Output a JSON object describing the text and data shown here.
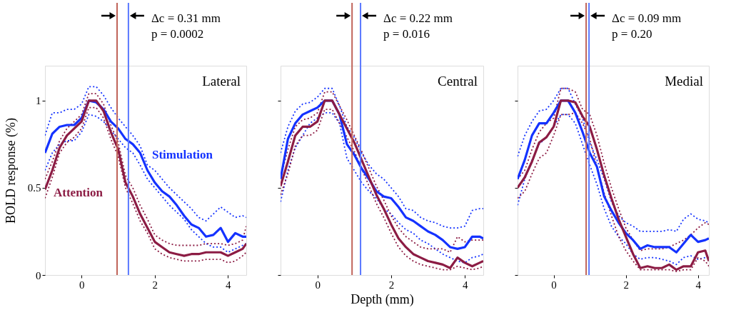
{
  "chart_data": [
    {
      "type": "line",
      "title": "Lateral",
      "ylabel": "BOLD response (%)",
      "xlim": [
        -1,
        4.5
      ],
      "ylim": [
        0,
        1.2
      ],
      "xticks": [
        0,
        2,
        4
      ],
      "yticks": [
        0,
        0.5,
        1
      ],
      "x": [
        -1,
        -0.8,
        -0.6,
        -0.4,
        -0.2,
        0,
        0.2,
        0.4,
        0.6,
        0.8,
        1.0,
        1.2,
        1.4,
        1.6,
        1.8,
        2.0,
        2.2,
        2.4,
        2.6,
        2.8,
        3.0,
        3.2,
        3.4,
        3.6,
        3.8,
        4.0,
        4.2,
        4.4,
        4.5
      ],
      "series": [
        {
          "color": "#1432ff",
          "line_style": "dotted",
          "values": [
            0.8,
            0.93,
            0.93,
            0.95,
            0.95,
            0.98,
            1.08,
            1.08,
            1.03,
            0.96,
            0.9,
            0.85,
            0.8,
            0.74,
            0.63,
            0.6,
            0.55,
            0.5,
            0.46,
            0.42,
            0.38,
            0.33,
            0.31,
            0.35,
            0.39,
            0.36,
            0.33,
            0.34,
            0.33
          ]
        },
        {
          "color": "#1432ff",
          "line_style": "dotted",
          "values": [
            0.6,
            0.7,
            0.75,
            0.77,
            0.77,
            0.82,
            0.92,
            0.91,
            0.88,
            0.83,
            0.78,
            0.73,
            0.7,
            0.63,
            0.55,
            0.5,
            0.45,
            0.4,
            0.36,
            0.32,
            0.26,
            0.22,
            0.18,
            0.16,
            0.16,
            0.13,
            0.15,
            0.17,
            0.18
          ]
        },
        {
          "color": "#8c1c44",
          "line_style": "dotted",
          "values": [
            0.55,
            0.65,
            0.77,
            0.84,
            0.88,
            0.92,
            1.04,
            1.04,
            0.98,
            0.86,
            0.76,
            0.57,
            0.5,
            0.4,
            0.32,
            0.23,
            0.2,
            0.18,
            0.17,
            0.17,
            0.17,
            0.17,
            0.18,
            0.18,
            0.18,
            0.17,
            0.18,
            0.2,
            0.28
          ]
        },
        {
          "color": "#8c1c44",
          "line_style": "dotted",
          "values": [
            0.44,
            0.56,
            0.7,
            0.76,
            0.79,
            0.84,
            0.96,
            0.96,
            0.9,
            0.78,
            0.68,
            0.5,
            0.41,
            0.31,
            0.24,
            0.15,
            0.12,
            0.1,
            0.09,
            0.08,
            0.08,
            0.08,
            0.09,
            0.09,
            0.09,
            0.07,
            0.08,
            0.11,
            0.13
          ]
        },
        {
          "name": "Stimulation",
          "color": "#1432ff",
          "line_style": "solid",
          "values": [
            0.7,
            0.81,
            0.85,
            0.86,
            0.86,
            0.9,
            1.0,
            0.99,
            0.95,
            0.88,
            0.84,
            0.78,
            0.75,
            0.7,
            0.6,
            0.53,
            0.48,
            0.45,
            0.4,
            0.34,
            0.29,
            0.27,
            0.22,
            0.23,
            0.27,
            0.19,
            0.24,
            0.22,
            0.22
          ]
        },
        {
          "name": "Attention",
          "color": "#8c1c44",
          "line_style": "solid",
          "values": [
            0.49,
            0.6,
            0.73,
            0.8,
            0.84,
            0.88,
            1.0,
            1.0,
            0.94,
            0.82,
            0.72,
            0.53,
            0.45,
            0.35,
            0.27,
            0.19,
            0.16,
            0.13,
            0.12,
            0.11,
            0.12,
            0.12,
            0.13,
            0.13,
            0.13,
            0.11,
            0.13,
            0.15,
            0.18
          ]
        }
      ],
      "ref_lines": [
        {
          "axis": "x",
          "value": 0.97,
          "color": "#c0645a"
        },
        {
          "axis": "x",
          "value": 1.28,
          "color": "#5a78ff"
        }
      ],
      "annotations": [
        "Δc = 0.31 mm",
        "p = 0.0002"
      ]
    },
    {
      "type": "line",
      "title": "Central",
      "xlabel": "Depth (mm)",
      "xlim": [
        -1,
        4.5
      ],
      "ylim": [
        0,
        1.2
      ],
      "xticks": [
        0,
        2,
        4
      ],
      "yticks": [
        0,
        0.5,
        1
      ],
      "tick_labels": "x",
      "x": [
        -1,
        -0.8,
        -0.6,
        -0.4,
        -0.2,
        0,
        0.2,
        0.4,
        0.6,
        0.8,
        1.0,
        1.2,
        1.4,
        1.6,
        1.8,
        2.0,
        2.2,
        2.4,
        2.6,
        2.8,
        3.0,
        3.2,
        3.4,
        3.6,
        3.8,
        4.0,
        4.2,
        4.4,
        4.5
      ],
      "series": [
        {
          "color": "#1432ff",
          "line_style": "dotted",
          "values": [
            0.7,
            0.85,
            0.94,
            0.98,
            0.99,
            1.02,
            1.07,
            1.07,
            0.97,
            0.85,
            0.79,
            0.7,
            0.63,
            0.58,
            0.55,
            0.5,
            0.45,
            0.38,
            0.37,
            0.33,
            0.31,
            0.3,
            0.28,
            0.27,
            0.27,
            0.28,
            0.37,
            0.38,
            0.38
          ]
        },
        {
          "color": "#1432ff",
          "line_style": "dotted",
          "values": [
            0.42,
            0.6,
            0.73,
            0.8,
            0.87,
            0.9,
            0.93,
            0.93,
            0.87,
            0.67,
            0.6,
            0.53,
            0.48,
            0.44,
            0.38,
            0.35,
            0.3,
            0.26,
            0.24,
            0.2,
            0.18,
            0.15,
            0.12,
            0.1,
            0.08,
            0.07,
            0.1,
            0.11,
            0.12
          ]
        },
        {
          "color": "#8c1c44",
          "line_style": "dotted",
          "values": [
            0.56,
            0.72,
            0.85,
            0.89,
            0.9,
            0.93,
            1.05,
            1.05,
            0.97,
            0.89,
            0.8,
            0.71,
            0.61,
            0.51,
            0.43,
            0.34,
            0.27,
            0.22,
            0.19,
            0.16,
            0.15,
            0.15,
            0.15,
            0.13,
            0.22,
            0.19,
            0.2,
            0.2,
            0.2
          ]
        },
        {
          "color": "#8c1c44",
          "line_style": "dotted",
          "values": [
            0.46,
            0.58,
            0.74,
            0.8,
            0.8,
            0.83,
            0.95,
            0.95,
            0.87,
            0.79,
            0.71,
            0.61,
            0.51,
            0.41,
            0.33,
            0.24,
            0.16,
            0.11,
            0.08,
            0.06,
            0.05,
            0.04,
            0.03,
            0.03,
            0.05,
            0.04,
            0.03,
            0.04,
            0.05
          ]
        },
        {
          "color": "#1432ff",
          "line_style": "solid",
          "values": [
            0.55,
            0.78,
            0.87,
            0.92,
            0.94,
            0.96,
            1.0,
            1.0,
            0.92,
            0.75,
            0.69,
            0.61,
            0.55,
            0.48,
            0.45,
            0.44,
            0.39,
            0.33,
            0.31,
            0.28,
            0.25,
            0.23,
            0.2,
            0.16,
            0.15,
            0.16,
            0.22,
            0.22,
            0.21
          ]
        },
        {
          "color": "#8c1c44",
          "line_style": "solid",
          "values": [
            0.51,
            0.65,
            0.8,
            0.85,
            0.85,
            0.88,
            1.0,
            1.0,
            0.92,
            0.84,
            0.76,
            0.66,
            0.56,
            0.46,
            0.38,
            0.29,
            0.21,
            0.16,
            0.12,
            0.1,
            0.08,
            0.07,
            0.06,
            0.04,
            0.1,
            0.07,
            0.05,
            0.07,
            0.08
          ]
        }
      ],
      "ref_lines": [
        {
          "axis": "x",
          "value": 0.94,
          "color": "#c0645a"
        },
        {
          "axis": "x",
          "value": 1.17,
          "color": "#5a78ff"
        }
      ],
      "annotations": [
        "Δc = 0.22 mm",
        "p = 0.016"
      ]
    },
    {
      "type": "line",
      "title": "Medial",
      "xlim": [
        -1,
        4.3
      ],
      "ylim": [
        0,
        1.2
      ],
      "xticks": [
        0,
        2,
        4
      ],
      "yticks": [
        0,
        0.5,
        1
      ],
      "tick_labels": "x",
      "x": [
        -1,
        -0.8,
        -0.6,
        -0.4,
        -0.2,
        0,
        0.2,
        0.4,
        0.6,
        0.8,
        1.0,
        1.2,
        1.4,
        1.6,
        1.8,
        2.0,
        2.2,
        2.4,
        2.6,
        2.8,
        3.0,
        3.2,
        3.4,
        3.6,
        3.8,
        4.0,
        4.2,
        4.3
      ],
      "series": [
        {
          "color": "#1432ff",
          "line_style": "dotted",
          "values": [
            0.68,
            0.8,
            0.88,
            0.94,
            0.95,
            1.0,
            1.07,
            1.07,
            0.98,
            0.9,
            0.76,
            0.66,
            0.55,
            0.42,
            0.34,
            0.3,
            0.28,
            0.25,
            0.25,
            0.25,
            0.25,
            0.26,
            0.25,
            0.32,
            0.35,
            0.32,
            0.31,
            0.3
          ]
        },
        {
          "color": "#1432ff",
          "line_style": "dotted",
          "values": [
            0.4,
            0.55,
            0.66,
            0.75,
            0.79,
            0.85,
            0.92,
            0.92,
            0.87,
            0.75,
            0.63,
            0.52,
            0.38,
            0.28,
            0.22,
            0.18,
            0.12,
            0.09,
            0.1,
            0.1,
            0.09,
            0.08,
            0.06,
            0.1,
            0.11,
            0.09,
            0.1,
            0.1
          ]
        },
        {
          "color": "#8c1c44",
          "line_style": "dotted",
          "values": [
            0.55,
            0.6,
            0.72,
            0.82,
            0.87,
            0.9,
            1.07,
            1.07,
            1.05,
            0.95,
            0.92,
            0.8,
            0.64,
            0.5,
            0.38,
            0.27,
            0.2,
            0.14,
            0.15,
            0.15,
            0.15,
            0.16,
            0.18,
            0.2,
            0.23,
            0.27,
            0.3,
            0.29
          ]
        },
        {
          "color": "#8c1c44",
          "line_style": "dotted",
          "values": [
            0.44,
            0.48,
            0.58,
            0.67,
            0.7,
            0.8,
            0.92,
            0.92,
            0.93,
            0.87,
            0.78,
            0.62,
            0.47,
            0.34,
            0.22,
            0.14,
            0.08,
            0.03,
            0.03,
            0.03,
            0.03,
            0.03,
            0.02,
            0.03,
            0.03,
            0.1,
            0.08,
            0.05
          ]
        },
        {
          "color": "#1432ff",
          "line_style": "solid",
          "values": [
            0.55,
            0.66,
            0.8,
            0.87,
            0.87,
            0.93,
            1.0,
            1.0,
            0.93,
            0.82,
            0.7,
            0.62,
            0.45,
            0.37,
            0.3,
            0.24,
            0.2,
            0.15,
            0.17,
            0.16,
            0.16,
            0.16,
            0.13,
            0.18,
            0.23,
            0.19,
            0.2,
            0.21
          ]
        },
        {
          "color": "#8c1c44",
          "line_style": "solid",
          "values": [
            0.5,
            0.56,
            0.65,
            0.76,
            0.79,
            0.85,
            1.0,
            1.0,
            0.99,
            0.91,
            0.85,
            0.72,
            0.57,
            0.44,
            0.32,
            0.22,
            0.12,
            0.04,
            0.05,
            0.04,
            0.04,
            0.06,
            0.03,
            0.05,
            0.05,
            0.13,
            0.14,
            0.08
          ]
        }
      ],
      "ref_lines": [
        {
          "axis": "x",
          "value": 0.9,
          "color": "#c0645a"
        },
        {
          "axis": "x",
          "value": 0.98,
          "color": "#5a78ff"
        }
      ],
      "annotations": [
        "Δc = 0.09 mm",
        "p = 0.20"
      ]
    }
  ]
}
